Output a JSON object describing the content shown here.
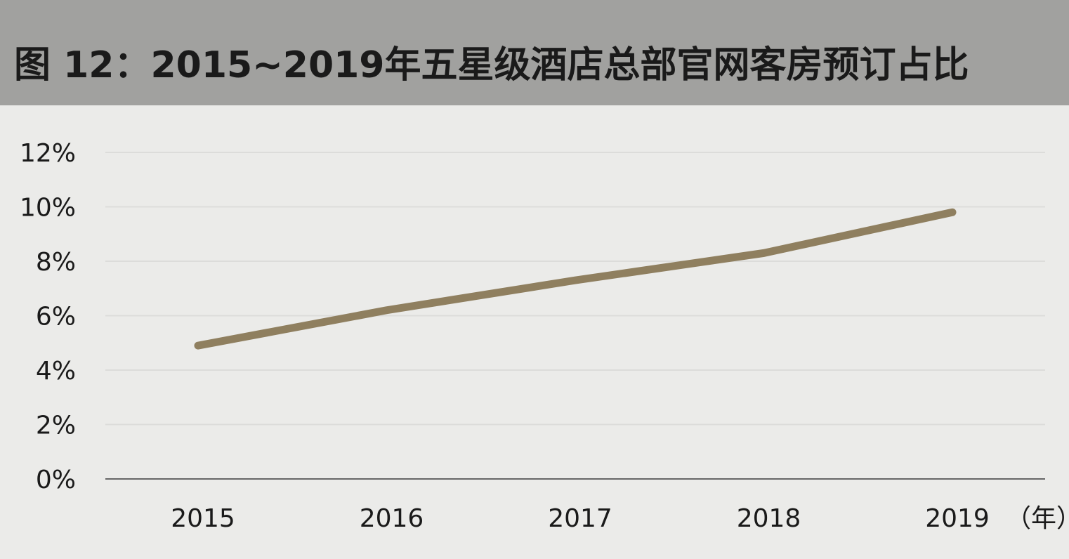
{
  "title": "图 12：2015~2019年五星级酒店总部官网客房预订占比",
  "colors": {
    "header_bg": "#a1a19f",
    "plot_bg": "#ebebe9",
    "line": "#8f7f5f",
    "grid": "#dcdcda",
    "axis": "#666666"
  },
  "chart_data": {
    "type": "line",
    "title": "图 12：2015~2019年五星级酒店总部官网客房预订占比",
    "xlabel": "（年）",
    "ylabel": "",
    "categories": [
      "2015",
      "2016",
      "2017",
      "2018",
      "2019"
    ],
    "series": [
      {
        "values": [
          4.9,
          6.2,
          7.3,
          8.3,
          9.8
        ]
      }
    ],
    "ylim": [
      0,
      12
    ],
    "y_ticks": [
      0,
      2,
      4,
      6,
      8,
      10,
      12
    ],
    "y_tick_labels": [
      "0%",
      "2%",
      "4%",
      "6%",
      "8%",
      "10%",
      "12%"
    ],
    "grid": true,
    "legend": "none"
  }
}
